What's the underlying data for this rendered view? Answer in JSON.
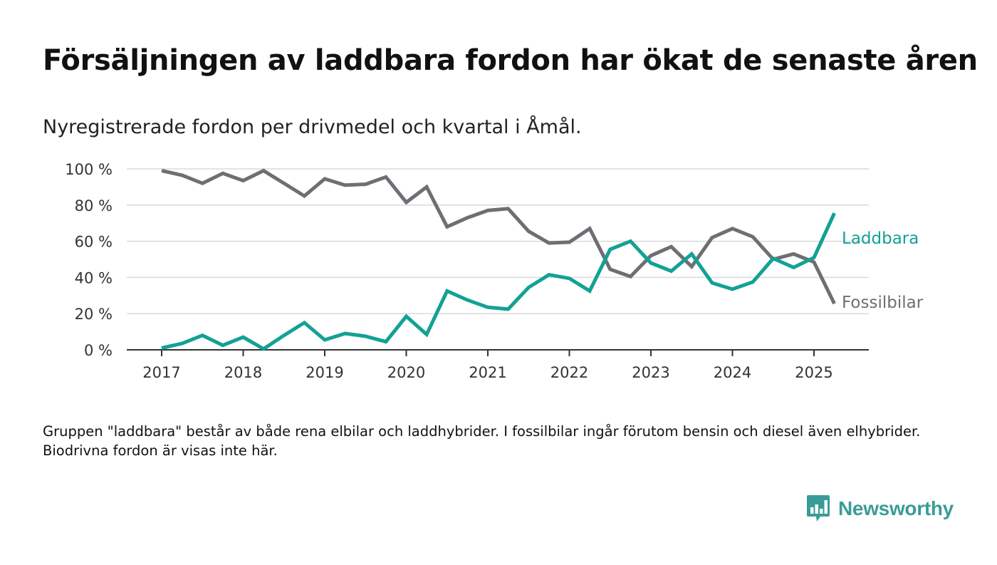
{
  "title": "Försäljningen av laddbara fordon har ökat de senaste åren",
  "subtitle": "Nyregistrerade fordon per drivmedel och kvartal i Åmål.",
  "footnote": "Gruppen \"laddbara\" består av både rena elbilar och laddhybrider. I fossilbilar ingår förutom bensin och diesel även elhybrider. Biodrivna fordon är visas inte här.",
  "brand": {
    "name": "Newsworthy",
    "icon": "bar-chart-speech-bubble-icon",
    "color": "#3a9c96"
  },
  "colors": {
    "laddbara": "#13a195",
    "fossil": "#6f6e74",
    "grid": "#dadada",
    "axis": "#333333"
  },
  "chart_data": {
    "type": "line",
    "xlabel": "",
    "ylabel": "",
    "x_ticks": [
      "2017",
      "2018",
      "2019",
      "2020",
      "2021",
      "2022",
      "2023",
      "2024",
      "2025"
    ],
    "y_ticks": [
      "0 %",
      "20 %",
      "40 %",
      "60 %",
      "80 %",
      "100 %"
    ],
    "ylim": [
      0,
      100
    ],
    "grid": true,
    "legend": "direct labels at line ends (right)",
    "x_start_year": 2017,
    "x": [
      "2017 Q1",
      "2017 Q2",
      "2017 Q3",
      "2017 Q4",
      "2018 Q1",
      "2018 Q2",
      "2018 Q3",
      "2018 Q4",
      "2019 Q1",
      "2019 Q2",
      "2019 Q3",
      "2019 Q4",
      "2020 Q1",
      "2020 Q2",
      "2020 Q3",
      "2020 Q4",
      "2021 Q1",
      "2021 Q2",
      "2021 Q3",
      "2021 Q4",
      "2022 Q1",
      "2022 Q2",
      "2022 Q3",
      "2022 Q4",
      "2023 Q1",
      "2023 Q2",
      "2023 Q3",
      "2023 Q4",
      "2024 Q1",
      "2024 Q2",
      "2024 Q3",
      "2024 Q4",
      "2025 Q1",
      "2025 Q2"
    ],
    "series": [
      {
        "name": "Laddbara",
        "color": "#13a195",
        "values": [
          1,
          3.5,
          8,
          2.5,
          7,
          0.5,
          8,
          15,
          5.5,
          9,
          7.5,
          4.5,
          18.5,
          8.5,
          32.5,
          27.5,
          23.5,
          22.5,
          34.5,
          41.5,
          39.5,
          32.5,
          55.5,
          60,
          48,
          43.5,
          53,
          37,
          33.5,
          37.5,
          50.5,
          45.5,
          51,
          75.5
        ]
      },
      {
        "name": "Fossilbilar",
        "color": "#6f6e74",
        "values": [
          99,
          96.5,
          92,
          97.5,
          93.5,
          99,
          92,
          85,
          94.5,
          91,
          91.5,
          95.5,
          81.5,
          90,
          68,
          73,
          77,
          78,
          65.5,
          59,
          59.5,
          67,
          44.5,
          40.5,
          52,
          57,
          46,
          62,
          67,
          62.5,
          50,
          53,
          48.5,
          25.5
        ]
      }
    ]
  }
}
